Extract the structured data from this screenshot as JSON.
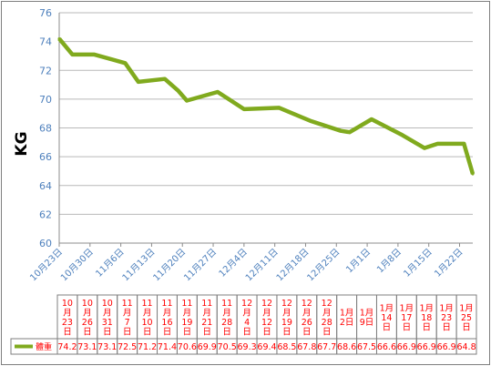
{
  "chart_data": {
    "type": "line",
    "ylabel": "KG",
    "ylim": [
      60,
      76
    ],
    "yticks": [
      "60",
      "62",
      "64",
      "66",
      "68",
      "70",
      "72",
      "74",
      "76"
    ],
    "x_tick_labels": [
      "10月23日",
      "10月30日",
      "11月6日",
      "11月13日",
      "11月20日",
      "11月27日",
      "12月4日",
      "12月11日",
      "12月18日",
      "12月25日",
      "1月1日",
      "1月8日",
      "1月15日",
      "1月22日"
    ],
    "categories": [
      "10月23日",
      "10月26日",
      "10月31日",
      "11月7日",
      "11月10日",
      "11月16日",
      "11月19日",
      "11月21日",
      "11月28日",
      "12月4日",
      "12月12日",
      "12月19日",
      "12月26日",
      "12月28日",
      "1月2日",
      "1月9日",
      "1月14日",
      "1月17日",
      "1月18日",
      "1月23日",
      "1月25日"
    ],
    "x_days": [
      0,
      3,
      8,
      15,
      18,
      24,
      27,
      29,
      36,
      42,
      50,
      57,
      64,
      66,
      71,
      78,
      83,
      86,
      87,
      92,
      94
    ],
    "x_range_days": [
      0,
      94
    ],
    "series": [
      {
        "name": "體重",
        "color": "#80aa1e",
        "values": [
          74.2,
          73.1,
          73.1,
          72.5,
          71.2,
          71.4,
          70.6,
          69.9,
          70.5,
          69.3,
          69.4,
          68.5,
          67.8,
          67.7,
          68.6,
          67.5,
          66.6,
          66.9,
          66.9,
          66.9,
          64.8
        ]
      }
    ],
    "grid": true,
    "legend": "table-left"
  },
  "table": {
    "date_cells": [
      "10月23日",
      "10月26日",
      "10月31日",
      "11月7日",
      "11月10日",
      "11月16日",
      "11月19日",
      "11月21日",
      "11月28日",
      "12月4日",
      "12月12日",
      "12月19日",
      "12月26日",
      "12月28日",
      "1月2日",
      "1月9日",
      "1月14日",
      "1月17日",
      "1月18日",
      "1月23日",
      "1月25日"
    ],
    "value_cells": [
      "74.2",
      "73.1",
      "73.1",
      "72.5",
      "71.2",
      "71.4",
      "70.6",
      "69.9",
      "70.5",
      "69.3",
      "69.4",
      "68.5",
      "67.8",
      "67.7",
      "68.6",
      "67.5",
      "66.6",
      "66.9",
      "66.9",
      "66.9",
      "64.8"
    ],
    "legend_label": "體重"
  }
}
